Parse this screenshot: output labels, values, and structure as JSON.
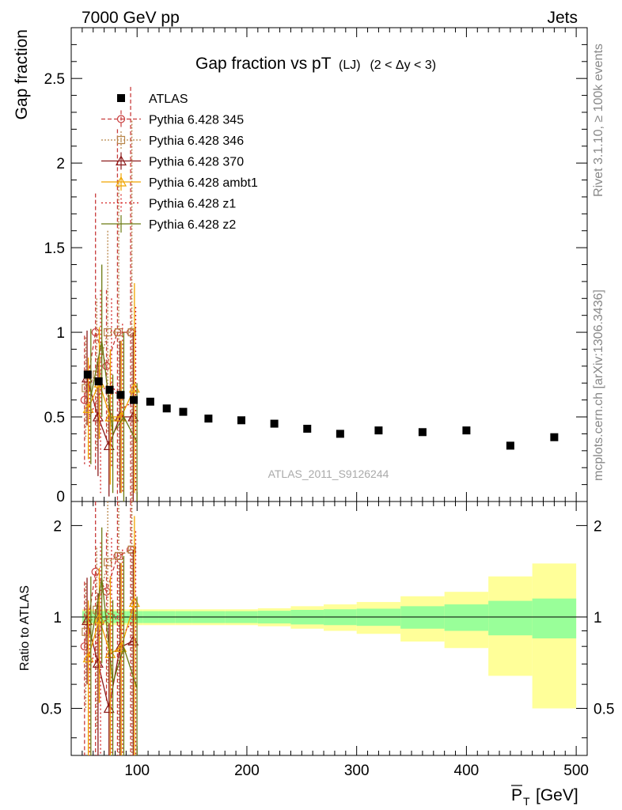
{
  "header": {
    "left": "7000 GeV pp",
    "right": "Jets"
  },
  "side_text": {
    "top": "Rivet 3.1.10, ≥ 100k events",
    "bottom": "mcplots.cern.ch [arXiv:1306.3436]"
  },
  "main_panel": {
    "title_main": "Gap fraction vs pT",
    "title_sub": "(LJ)",
    "title_range": "(2 < Δy < 3)",
    "ylabel": "Gap fraction",
    "watermark": "ATLAS_2011_S9126244",
    "yticks": [
      "0",
      "0.5",
      "1",
      "1.5",
      "2",
      "2.5"
    ]
  },
  "ratio_panel": {
    "ylabel": "Ratio to ATLAS",
    "yticks_left": [
      "0.5",
      "1",
      "2"
    ],
    "yticks_right": [
      "0.5",
      "1",
      "2"
    ]
  },
  "xaxis": {
    "ticks": [
      "100",
      "200",
      "300",
      "400",
      "500"
    ],
    "label_base": "P",
    "label_sub": "T",
    "label_unit": "[GeV]"
  },
  "legend": [
    {
      "label": "ATLAS"
    },
    {
      "label": "Pythia 6.428 345"
    },
    {
      "label": "Pythia 6.428 346"
    },
    {
      "label": "Pythia 6.428 370"
    },
    {
      "label": "Pythia 6.428 ambt1"
    },
    {
      "label": "Pythia 6.428 z1"
    },
    {
      "label": "Pythia 6.428 z2"
    }
  ],
  "chart_data": {
    "type": "scatter",
    "title": "Gap fraction vs pT (LJ) (2 < Δy < 3)",
    "xlabel": "P_T [GeV]",
    "ylabel": "Gap fraction",
    "xlim": [
      40,
      510
    ],
    "ylim": [
      0,
      2.8
    ],
    "ratio_ylim": [
      0.35,
      2.4
    ],
    "ratio_scale": "log",
    "grid": false,
    "legend_position": "top-left",
    "data": {
      "name": "ATLAS",
      "color": "#000000",
      "marker": "square",
      "x": [
        55,
        65,
        75,
        85,
        97,
        112,
        127,
        142,
        165,
        195,
        225,
        255,
        285,
        320,
        360,
        400,
        440,
        480
      ],
      "y": [
        0.75,
        0.71,
        0.66,
        0.63,
        0.6,
        0.59,
        0.55,
        0.53,
        0.49,
        0.48,
        0.46,
        0.43,
        0.4,
        0.42,
        0.41,
        0.42,
        0.33,
        0.38
      ]
    },
    "ratio_bands": {
      "edges": [
        50,
        60,
        70,
        80,
        90,
        105,
        120,
        135,
        150,
        180,
        210,
        240,
        270,
        300,
        340,
        380,
        420,
        460,
        500
      ],
      "inner": [
        0.045,
        0.045,
        0.045,
        0.045,
        0.045,
        0.045,
        0.045,
        0.045,
        0.045,
        0.045,
        0.048,
        0.055,
        0.06,
        0.065,
        0.085,
        0.1,
        0.13,
        0.15
      ],
      "outer": [
        0.06,
        0.06,
        0.06,
        0.06,
        0.06,
        0.06,
        0.06,
        0.06,
        0.06,
        0.06,
        0.068,
        0.085,
        0.1,
        0.12,
        0.17,
        0.21,
        0.36,
        0.5
      ]
    },
    "series": [
      {
        "name": "Pythia 6.428 345",
        "color": "#c83c3c",
        "marker": "circle-open",
        "dash": "5,3",
        "x": [
          55,
          65,
          75,
          85,
          97
        ],
        "y": [
          0.6,
          1.0,
          0.8,
          1.0,
          1.0
        ],
        "err": [
          0.38,
          0.82,
          0.45,
          1.2,
          1.45
        ]
      },
      {
        "name": "Pythia 6.428 346",
        "color": "#b8864a",
        "marker": "square-open",
        "dash": "2,2",
        "x": [
          55,
          65,
          75,
          85,
          97
        ],
        "y": [
          0.67,
          0.75,
          1.0,
          1.0,
          1.0
        ],
        "err": [
          0.3,
          0.45,
          0.6,
          0.9,
          1.25
        ]
      },
      {
        "name": "Pythia 6.428 370",
        "color": "#8b1a1a",
        "marker": "triangle-open",
        "dash": "",
        "x": [
          55,
          65,
          75,
          85,
          97
        ],
        "y": [
          0.73,
          0.5,
          0.33,
          0.5,
          0.5
        ],
        "err": [
          0.28,
          0.35,
          0.3,
          0.45,
          0.5
        ]
      },
      {
        "name": "Pythia 6.428 ambt1",
        "color": "#f0a500",
        "marker": "triangle-open",
        "dash": "",
        "x": [
          55,
          65,
          75,
          85,
          97
        ],
        "y": [
          0.55,
          0.7,
          0.5,
          0.5,
          0.67
        ],
        "err": [
          0.3,
          0.33,
          0.4,
          0.45,
          0.62
        ]
      },
      {
        "name": "Pythia 6.428 z1",
        "color": "#d42020",
        "marker": "none",
        "dash": "2,3",
        "x": [
          55,
          65,
          75,
          85,
          97
        ],
        "y": [
          0.5,
          0.65,
          0.7,
          0.55,
          0.6
        ],
        "err": [
          0.3,
          0.6,
          0.5,
          0.5,
          0.55
        ]
      },
      {
        "name": "Pythia 6.428 z2",
        "color": "#6b7a12",
        "marker": "none",
        "dash": "",
        "x": [
          55,
          65,
          75,
          85,
          97
        ],
        "y": [
          0.62,
          0.95,
          0.4,
          0.5,
          0.35
        ],
        "err": [
          0.4,
          0.45,
          0.35,
          0.5,
          0.35
        ]
      }
    ]
  }
}
